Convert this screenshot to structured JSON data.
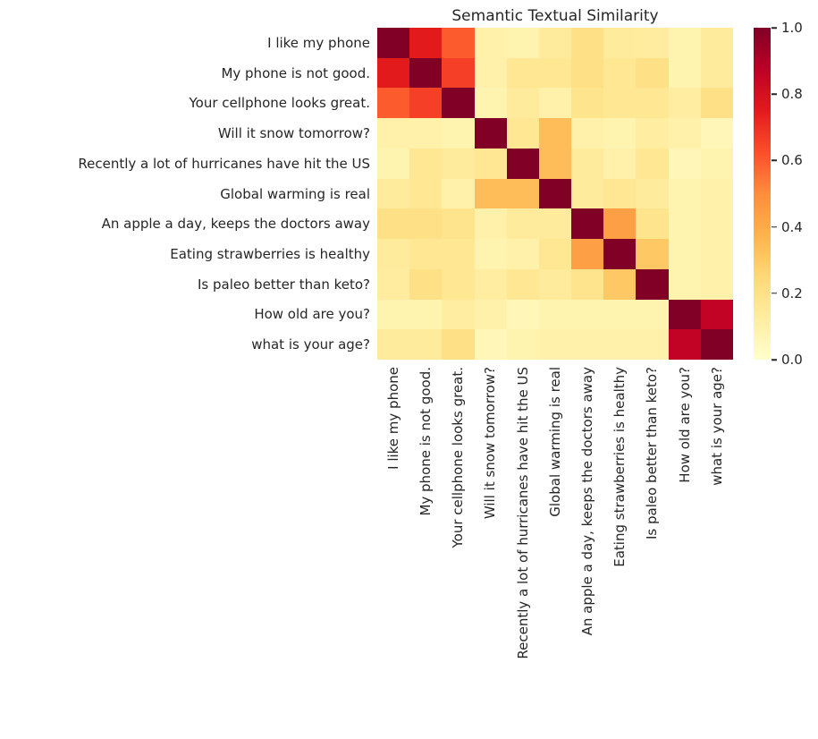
{
  "figure": {
    "background": "#ffffff",
    "text_color": "#262626"
  },
  "chart_data": {
    "type": "heatmap",
    "title": "Semantic Textual Similarity",
    "labels": [
      "I like my phone",
      "My phone is not good.",
      "Your cellphone looks great.",
      "Will it snow tomorrow?",
      "Recently a lot of hurricanes have hit the US",
      "Global warming is real",
      "An apple a day, keeps the doctors away",
      "Eating strawberries is healthy",
      "Is paleo better than keto?",
      "How old are you?",
      "what is your age?"
    ],
    "matrix": [
      [
        1.0,
        0.75,
        0.6,
        0.1,
        0.08,
        0.14,
        0.2,
        0.14,
        0.13,
        0.08,
        0.14
      ],
      [
        0.75,
        1.0,
        0.66,
        0.1,
        0.16,
        0.16,
        0.2,
        0.16,
        0.2,
        0.08,
        0.14
      ],
      [
        0.6,
        0.66,
        1.0,
        0.08,
        0.14,
        0.1,
        0.18,
        0.16,
        0.16,
        0.12,
        0.2
      ],
      [
        0.1,
        0.1,
        0.08,
        1.0,
        0.16,
        0.34,
        0.1,
        0.08,
        0.12,
        0.1,
        0.06
      ],
      [
        0.08,
        0.16,
        0.14,
        0.16,
        1.0,
        0.34,
        0.14,
        0.1,
        0.16,
        0.06,
        0.08
      ],
      [
        0.14,
        0.16,
        0.1,
        0.34,
        0.34,
        1.0,
        0.14,
        0.16,
        0.14,
        0.08,
        0.1
      ],
      [
        0.2,
        0.2,
        0.18,
        0.1,
        0.14,
        0.14,
        1.0,
        0.44,
        0.18,
        0.08,
        0.1
      ],
      [
        0.14,
        0.16,
        0.16,
        0.08,
        0.1,
        0.16,
        0.44,
        1.0,
        0.3,
        0.08,
        0.1
      ],
      [
        0.13,
        0.2,
        0.16,
        0.12,
        0.16,
        0.14,
        0.18,
        0.3,
        1.0,
        0.08,
        0.1
      ],
      [
        0.08,
        0.08,
        0.12,
        0.1,
        0.06,
        0.08,
        0.08,
        0.08,
        0.08,
        1.0,
        0.86
      ],
      [
        0.14,
        0.14,
        0.2,
        0.06,
        0.08,
        0.1,
        0.1,
        0.1,
        0.1,
        0.86,
        1.0
      ]
    ],
    "vmin": 0,
    "vmax": 1,
    "grid": false,
    "colormap": "YlOrRd",
    "colormap_stops": [
      "#ffffcc",
      "#ffeda0",
      "#fed976",
      "#feb24c",
      "#fd8d3c",
      "#fc4e2a",
      "#e31a1c",
      "#bd0026",
      "#800026"
    ],
    "colorbar": {
      "position": "right",
      "ticks": [
        {
          "value": 0.0,
          "label": "0.0"
        },
        {
          "value": 0.2,
          "label": "0.2"
        },
        {
          "value": 0.4,
          "label": "0.4"
        },
        {
          "value": 0.6,
          "label": "0.6"
        },
        {
          "value": 0.8,
          "label": "0.8"
        },
        {
          "value": 1.0,
          "label": "1.0"
        }
      ]
    }
  }
}
